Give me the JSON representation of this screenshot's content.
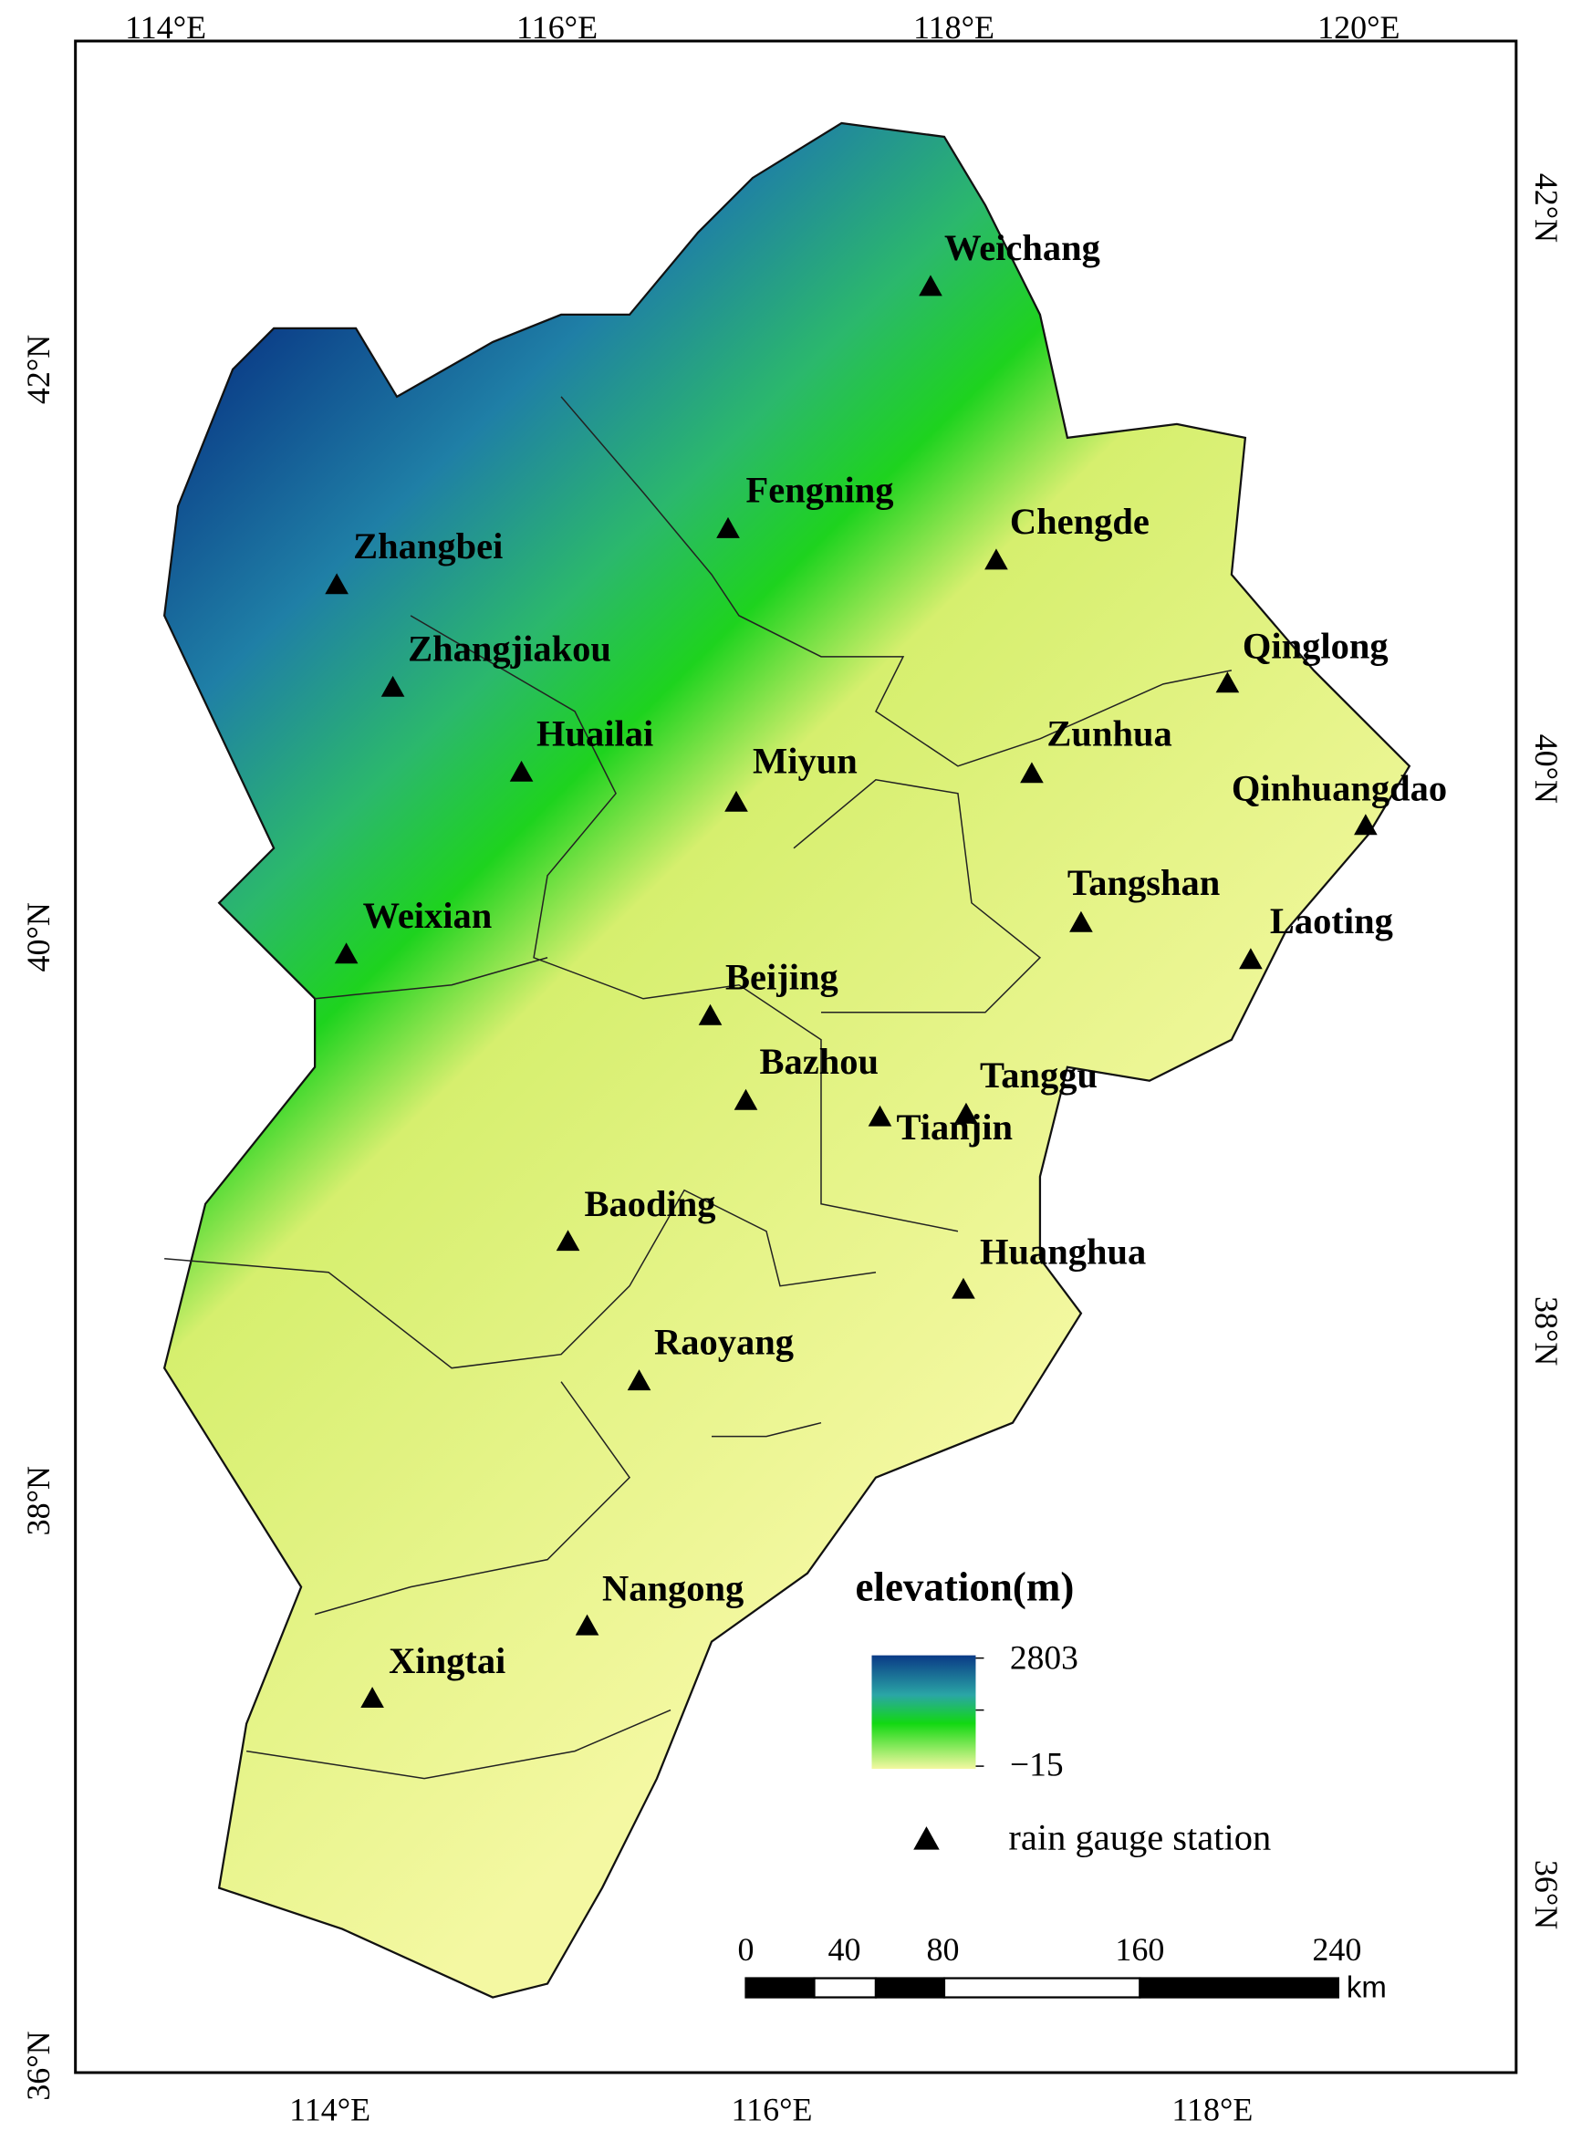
{
  "map": {
    "axes": {
      "top": [
        "114°E",
        "116°E",
        "118°E",
        "120°E"
      ],
      "bottom": [
        "114°E",
        "116°E",
        "118°E"
      ],
      "left": [
        "42°N",
        "40°N",
        "38°N",
        "36°N"
      ],
      "right": [
        "42°N",
        "40°N",
        "38°N",
        "36°N"
      ]
    },
    "stations": [
      "Weichang",
      "Fengning",
      "Chengde",
      "Zhangbei",
      "Zhangjiakou",
      "Qinglong",
      "Huailai",
      "Miyun",
      "Zunhua",
      "Qinhuangdao",
      "Tangshan",
      "Laoting",
      "Weixian",
      "Beijing",
      "Bazhou",
      "Tanggu",
      "Tianjin",
      "Baoding",
      "Huanghua",
      "Raoyang",
      "Nangong",
      "Xingtai"
    ],
    "legend": {
      "title": "elevation(m)",
      "max": "2803",
      "min": "−15",
      "station": "rain gauge station"
    },
    "scale_bar": {
      "ticks": [
        "0",
        "40",
        "80",
        "160",
        "240"
      ],
      "unit": "km"
    }
  }
}
